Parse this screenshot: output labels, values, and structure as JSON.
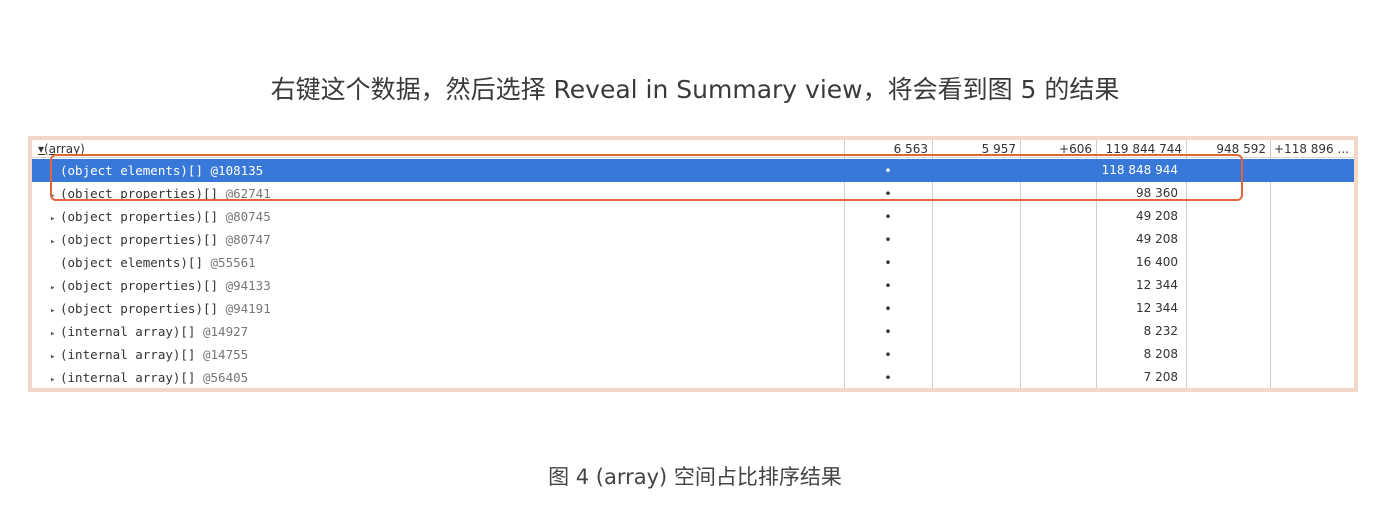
{
  "headline": "右键这个数据，然后选择 Reveal in Summary view，将会看到图 5 的结果",
  "caption": "图 4 (array) 空间占比排序结果",
  "table": {
    "parent": {
      "name": "▾(array)",
      "col1": "6 563",
      "col2": "5 957",
      "col3": "+606",
      "col4": "119 844 744",
      "col5": "948 592",
      "col6": "+118 896 ..."
    },
    "rows": [
      {
        "expand": "",
        "label": "(object elements)[]",
        "addr": "@108135",
        "dot": "•",
        "size": "118 848 944",
        "selected": true
      },
      {
        "expand": "▸",
        "label": "(object properties)[]",
        "addr": "@62741",
        "dot": "•",
        "size": "98 360"
      },
      {
        "expand": "▸",
        "label": "(object properties)[]",
        "addr": "@80745",
        "dot": "•",
        "size": "49 208"
      },
      {
        "expand": "▸",
        "label": "(object properties)[]",
        "addr": "@80747",
        "dot": "•",
        "size": "49 208"
      },
      {
        "expand": "",
        "label": "(object elements)[]",
        "addr": "@55561",
        "dot": "•",
        "size": "16 400"
      },
      {
        "expand": "▸",
        "label": "(object properties)[]",
        "addr": "@94133",
        "dot": "•",
        "size": "12 344"
      },
      {
        "expand": "▸",
        "label": "(object properties)[]",
        "addr": "@94191",
        "dot": "•",
        "size": "12 344"
      },
      {
        "expand": "▸",
        "label": "(internal array)[]",
        "addr": "@14927",
        "dot": "•",
        "size": "8 232"
      },
      {
        "expand": "▸",
        "label": "(internal array)[]",
        "addr": "@14755",
        "dot": "•",
        "size": "8 208"
      },
      {
        "expand": "▸",
        "label": "(internal array)[]",
        "addr": "@56405",
        "dot": "•",
        "size": "7 208"
      }
    ]
  },
  "colors": {
    "selection": "#3878d9",
    "highlight_border": "#e0663a",
    "panel_border": "#f3d7c8"
  }
}
